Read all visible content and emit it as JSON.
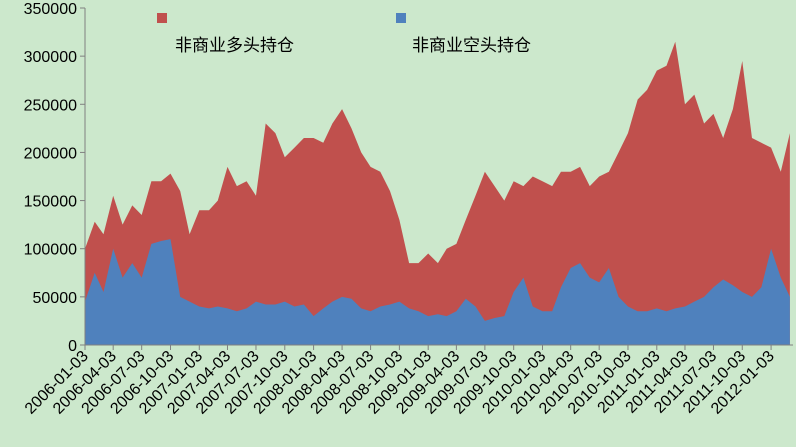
{
  "chart_data": {
    "type": "area",
    "x": [
      "2006-01-03",
      "2006-02-03",
      "2006-03-03",
      "2006-04-03",
      "2006-05-03",
      "2006-06-03",
      "2006-07-03",
      "2006-08-03",
      "2006-09-03",
      "2006-10-03",
      "2006-11-03",
      "2006-12-03",
      "2007-01-03",
      "2007-02-03",
      "2007-03-03",
      "2007-04-03",
      "2007-05-03",
      "2007-06-03",
      "2007-07-03",
      "2007-08-03",
      "2007-09-03",
      "2007-10-03",
      "2007-11-03",
      "2007-12-03",
      "2008-01-03",
      "2008-02-03",
      "2008-03-03",
      "2008-04-03",
      "2008-05-03",
      "2008-06-03",
      "2008-07-03",
      "2008-08-03",
      "2008-09-03",
      "2008-10-03",
      "2008-11-03",
      "2008-12-03",
      "2009-01-03",
      "2009-02-03",
      "2009-03-03",
      "2009-04-03",
      "2009-05-03",
      "2009-06-03",
      "2009-07-03",
      "2009-08-03",
      "2009-09-03",
      "2009-10-03",
      "2009-11-03",
      "2009-12-03",
      "2010-01-03",
      "2010-02-03",
      "2010-03-03",
      "2010-04-03",
      "2010-05-03",
      "2010-06-03",
      "2010-07-03",
      "2010-08-03",
      "2010-09-03",
      "2010-10-03",
      "2010-11-03",
      "2010-12-03",
      "2011-01-03",
      "2011-02-03",
      "2011-03-03",
      "2011-04-03",
      "2011-05-03",
      "2011-06-03",
      "2011-07-03",
      "2011-08-03",
      "2011-09-03",
      "2011-10-03",
      "2011-11-03",
      "2011-12-03",
      "2012-01-03",
      "2012-02-03",
      "2012-03-03"
    ],
    "series": [
      {
        "name": "非商业多头持仓",
        "color": "#c0504d",
        "values": [
          100000,
          128000,
          115000,
          155000,
          125000,
          145000,
          135000,
          170000,
          170000,
          178000,
          160000,
          115000,
          140000,
          140000,
          150000,
          185000,
          165000,
          170000,
          155000,
          230000,
          220000,
          195000,
          205000,
          215000,
          215000,
          210000,
          230000,
          245000,
          225000,
          200000,
          185000,
          180000,
          160000,
          130000,
          85000,
          85000,
          95000,
          85000,
          100000,
          105000,
          130000,
          155000,
          180000,
          165000,
          150000,
          170000,
          165000,
          175000,
          170000,
          165000,
          180000,
          180000,
          185000,
          165000,
          175000,
          180000,
          200000,
          220000,
          255000,
          265000,
          285000,
          290000,
          315000,
          250000,
          260000,
          230000,
          240000,
          215000,
          245000,
          295000,
          215000,
          210000,
          205000,
          180000,
          220000
        ]
      },
      {
        "name": "非商业空头持仓",
        "color": "#4f81bd",
        "values": [
          45000,
          75000,
          55000,
          100000,
          70000,
          85000,
          70000,
          105000,
          108000,
          110000,
          50000,
          45000,
          40000,
          38000,
          40000,
          38000,
          35000,
          38000,
          45000,
          42000,
          42000,
          45000,
          40000,
          42000,
          30000,
          38000,
          45000,
          50000,
          48000,
          38000,
          35000,
          40000,
          42000,
          45000,
          38000,
          35000,
          30000,
          32000,
          30000,
          35000,
          48000,
          40000,
          25000,
          28000,
          30000,
          55000,
          70000,
          40000,
          35000,
          35000,
          60000,
          80000,
          85000,
          70000,
          65000,
          80000,
          50000,
          40000,
          35000,
          35000,
          38000,
          35000,
          38000,
          40000,
          45000,
          50000,
          60000,
          68000,
          62000,
          55000,
          50000,
          60000,
          100000,
          70000,
          50000
        ]
      }
    ],
    "xlim": [
      "2006-01-03",
      "2012-03-13"
    ],
    "xticks": [
      "2006-01-03",
      "2006-04-03",
      "2006-07-03",
      "2006-10-03",
      "2007-01-03",
      "2007-04-03",
      "2007-07-03",
      "2007-10-03",
      "2008-01-03",
      "2008-04-03",
      "2008-07-03",
      "2008-10-03",
      "2009-01-03",
      "2009-04-03",
      "2009-07-03",
      "2009-10-03",
      "2010-01-03",
      "2010-04-03",
      "2010-07-03",
      "2010-10-03",
      "2011-01-03",
      "2011-04-03",
      "2011-07-03",
      "2011-10-03",
      "2012-01-03"
    ],
    "ylim": [
      0,
      350000
    ],
    "yticks": [
      0,
      50000,
      100000,
      150000,
      200000,
      250000,
      300000,
      350000
    ]
  }
}
